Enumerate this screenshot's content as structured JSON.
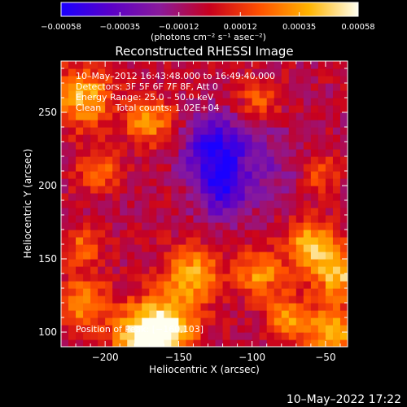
{
  "chart_data": {
    "type": "heatmap",
    "title": "Reconstructed RHESSI Image",
    "xlabel": "Heliocentric X (arcsec)",
    "ylabel": "Heliocentric Y (arcsec)",
    "xlim": [
      -230,
      -35
    ],
    "ylim": [
      90,
      285
    ],
    "x_ticks": [
      -200,
      -150,
      -100,
      -50
    ],
    "x_tick_labels": [
      "−200",
      "−150",
      "−100",
      "−50"
    ],
    "y_ticks": [
      100,
      150,
      200,
      250
    ],
    "y_tick_labels": [
      "100",
      "150",
      "200",
      "250"
    ],
    "colorbar": {
      "min": -0.00058,
      "max": 0.00058,
      "ticks": [
        -0.00058,
        -0.00035,
        -0.00012,
        0.00012,
        0.00035,
        0.00058
      ],
      "tick_labels": [
        "−0.00058",
        "−0.00035",
        "−0.00012",
        "0.00012",
        "0.00035",
        "0.00058"
      ],
      "unit_label": "(photons cm⁻² s⁻¹ asec⁻²)",
      "colors": [
        "#1a00ff",
        "#5a00c8",
        "#8a1a9a",
        "#c8001e",
        "#ff5000",
        "#ffb400",
        "#fffff0"
      ]
    },
    "annotations": {
      "time_range": "10–May–2012 16:43:48.000 to 16:49:40.000",
      "detectors": "Detectors: 3F 5F 6F 7F 8F, Att 0",
      "energy": "Energy Range: 25.0 – 50.0 keV",
      "clean": "Clean     Total counts: 1.02E+04",
      "peak": "Position of Peak: [−160,103]"
    },
    "peak": [
      -160,
      103
    ],
    "blobs": [
      {
        "x": -160,
        "y": 103,
        "amp": 1.0,
        "r": 16
      },
      {
        "x": -175,
        "y": 95,
        "amp": 0.8,
        "r": 14
      },
      {
        "x": -215,
        "y": 260,
        "amp": 0.85,
        "r": 14
      },
      {
        "x": -170,
        "y": 245,
        "amp": 0.7,
        "r": 12
      },
      {
        "x": -205,
        "y": 210,
        "amp": 0.55,
        "r": 10
      },
      {
        "x": -140,
        "y": 140,
        "amp": 0.8,
        "r": 13
      },
      {
        "x": -60,
        "y": 160,
        "amp": 0.85,
        "r": 12
      },
      {
        "x": -40,
        "y": 140,
        "amp": 0.9,
        "r": 12
      },
      {
        "x": -95,
        "y": 140,
        "amp": 0.7,
        "r": 11
      },
      {
        "x": -75,
        "y": 110,
        "amp": 0.65,
        "r": 11
      },
      {
        "x": -45,
        "y": 100,
        "amp": 0.8,
        "r": 12
      },
      {
        "x": -215,
        "y": 120,
        "amp": 0.65,
        "r": 13
      },
      {
        "x": -215,
        "y": 160,
        "amp": 0.5,
        "r": 10
      },
      {
        "x": -95,
        "y": 260,
        "amp": 0.45,
        "r": 10
      },
      {
        "x": -55,
        "y": 210,
        "amp": 0.5,
        "r": 10
      },
      {
        "x": -125,
        "y": 225,
        "amp": -0.95,
        "r": 15
      },
      {
        "x": -120,
        "y": 195,
        "amp": -0.75,
        "r": 12
      },
      {
        "x": -85,
        "y": 215,
        "amp": -0.3,
        "r": 18
      }
    ]
  },
  "footer": {
    "timestamp": "10–May–2022 17:22"
  }
}
